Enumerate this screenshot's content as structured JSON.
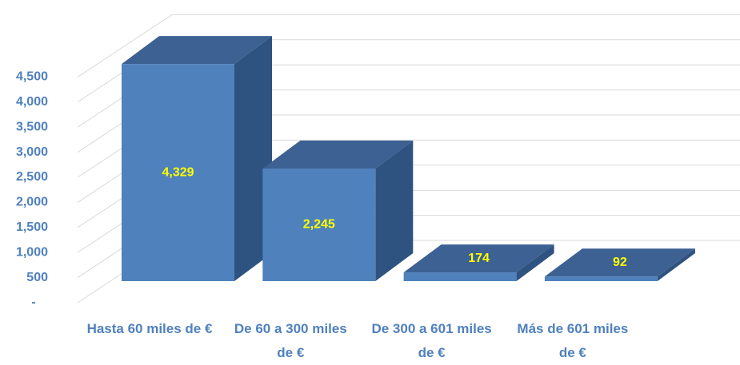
{
  "chart_data": {
    "type": "bar3d",
    "categories": [
      "Hasta 60 miles de €",
      "De 60 a 300 miles de €",
      "De 300 a 601 miles de €",
      "Más de 601 miles de €"
    ],
    "values": [
      4329,
      2245,
      174,
      92
    ],
    "value_labels": [
      "4,329",
      "2,245",
      "174",
      "92"
    ],
    "color": "#4f81bd",
    "ylim": [
      0,
      5000
    ],
    "yticks": [
      {
        "value": 0,
        "label": "-"
      },
      500,
      {
        "value": 1000,
        "label": "1,000"
      },
      {
        "value": 1500,
        "label": "1,500"
      },
      {
        "value": 2000,
        "label": "2,000"
      },
      {
        "value": 2500,
        "label": "2,500"
      },
      {
        "value": 3000,
        "label": "3,000"
      },
      {
        "value": 3500,
        "label": "3,500"
      },
      {
        "value": 4000,
        "label": "4,000"
      },
      {
        "value": 4500,
        "label": "4,500"
      }
    ],
    "grid": true
  }
}
